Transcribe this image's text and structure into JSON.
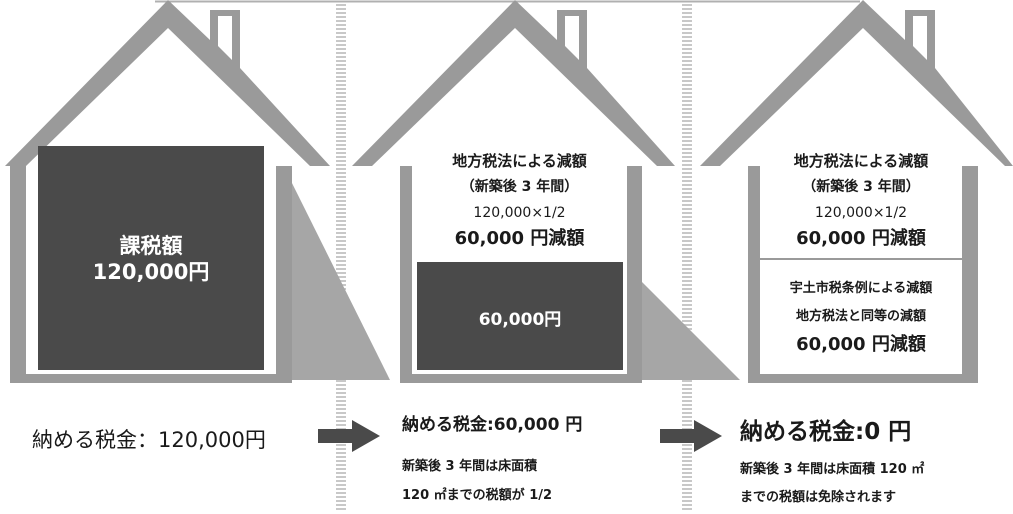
{
  "colors": {
    "house_outline": "#9a9a9a",
    "tax_block": "#4a4a4a",
    "reduction_wedge": "#a6a6a6",
    "divider": "#c8c8c8",
    "arrow": "#4a4a4a",
    "text_on_dark": "#ffffff",
    "text_dark": "#1a1a1a"
  },
  "houses": [
    {
      "tax_label": "課税額",
      "tax_amount": "120,000円"
    },
    {
      "reduction_title": "地方税法による減額",
      "reduction_period": "（新築後 3 年間）",
      "reduction_formula": "120,000×1/2",
      "reduction_amount": "60,000 円減額",
      "remaining_amount": "60,000円"
    },
    {
      "reduction_title": "地方税法による減額",
      "reduction_period": "（新築後 3 年間）",
      "reduction_formula": "120,000×1/2",
      "reduction_amount": "60,000 円減額",
      "city_title": "宇土市税条例による減額",
      "city_desc": "地方税法と同等の減額",
      "city_amount": "60,000 円減額"
    }
  ],
  "captions": [
    {
      "main": "納める税金：120,000円"
    },
    {
      "main": "納める税金:60,000 円",
      "sub1": "新築後 3 年間は床面積",
      "sub2": "120 ㎡までの税額が 1/2"
    },
    {
      "main": "納める税金:0 円",
      "sub1": "新築後 3 年間は床面積 120 ㎡",
      "sub2": "までの税額は免除されます"
    }
  ]
}
